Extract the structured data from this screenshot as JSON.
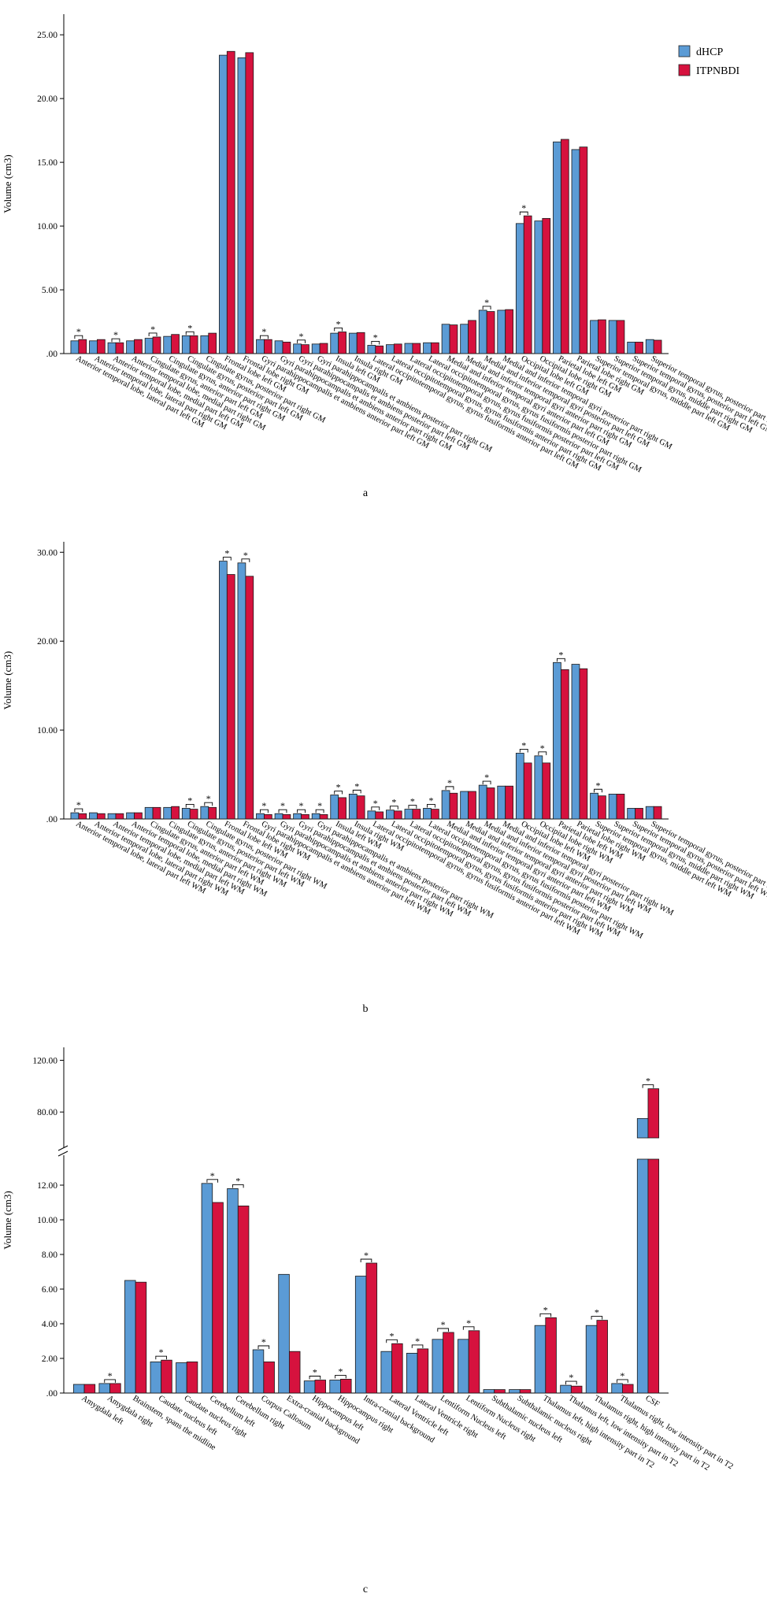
{
  "legend": {
    "series_a": "dHCP",
    "series_b": "ITPNBDI",
    "color_a": "#5b9bd5",
    "color_b": "#d6123e"
  },
  "chart_data": [
    {
      "id": "a",
      "type": "bar",
      "caption": "a",
      "ylabel": "Volume (cm3)",
      "ylim": [
        0,
        26
      ],
      "yticks": [
        "25.00",
        "20.00",
        "15.00",
        "10.00",
        "5.00",
        ".00"
      ],
      "ytick_values": [
        25,
        20,
        15,
        10,
        5,
        0
      ],
      "categories": [
        "Anterior temporal lobe, lateral part left GM",
        "Anterior temporal lobe, lateral part right GM",
        "Anterior temporal lobe, medial part left GM",
        "Anterior temporal lobe, medial part right GM",
        "Cingulate gyrus, anterior part left GM",
        "Cingulate gyrus, anterior part right GM",
        "Cingulate gyrus, posterior part left GM",
        "Cingulate gyrus, posterior part right GM",
        "Frontal lobe left GM",
        "Frontal lobe right GM",
        "Gyri parahippocampalis et ambiens anterior part left GM",
        "Gyri parahippocampalis et ambiens anterior part right GM",
        "Gyri parahippocampalis et ambiens posterior part left GM",
        "Gyri parahippocampalis et ambiens posterior part right GM",
        "Insula left GM",
        "Insula right GM",
        "Lateral occipitotemporal gyrus, gyrus fusiformis anterior part left GM",
        "Lateral occipitotemporal gyrus, gyrus fusiformis anterior part right GM",
        "Lateral occipitotemporal gyrus, gyrus fusiformis posterior part left GM",
        "Lateral occipitotemporal gyrus, gyrus fusiformis posterior part right GM",
        "Medial and inferior temporal gyri anterior part left GM",
        "Medial and inferior temporal gyri anterior part right GM",
        "Medial and inferior temporal gyri posterior part left GM",
        "Medial and inferior temporal gyri posterior part right GM",
        "Occipital lobe left GM",
        "Occipital lobe right GM",
        "Parietal lobe left GM",
        "Parietal lobe right GM",
        "Superior temporal gyrus, middle part left GM",
        "Superior temporal gyrus, middle part right GM",
        "Superior temporal gyrus, posterior part left GM",
        "Superior temporal gyrus, posterior part right GM"
      ],
      "series": [
        {
          "name": "dHCP",
          "values": [
            1.0,
            1.0,
            0.85,
            1.0,
            1.2,
            1.35,
            1.4,
            1.4,
            23.4,
            23.2,
            1.1,
            1.0,
            0.75,
            0.75,
            1.6,
            1.6,
            0.65,
            0.7,
            0.8,
            0.85,
            2.3,
            2.3,
            3.4,
            3.4,
            10.2,
            10.4,
            16.6,
            16.0,
            2.6,
            2.6,
            0.9,
            1.1
          ]
        },
        {
          "name": "ITPNBDI",
          "values": [
            1.1,
            1.1,
            0.85,
            1.1,
            1.3,
            1.5,
            1.4,
            1.6,
            23.7,
            23.6,
            1.1,
            0.9,
            0.7,
            0.8,
            1.7,
            1.65,
            0.6,
            0.75,
            0.8,
            0.85,
            2.25,
            2.6,
            3.3,
            3.45,
            10.8,
            10.6,
            16.8,
            16.2,
            2.65,
            2.6,
            0.9,
            1.05
          ]
        }
      ],
      "significant_pairs": [
        [
          0,
          1
        ],
        [
          2,
          3
        ],
        [
          4,
          5
        ],
        [
          6,
          7
        ],
        [
          10,
          11
        ],
        [
          12,
          13
        ],
        [
          14,
          15
        ],
        [
          16
        ],
        [
          22
        ],
        [
          24
        ]
      ],
      "significance_marker": "*"
    },
    {
      "id": "b",
      "type": "bar",
      "caption": "b",
      "ylabel": "Volume (cm3)",
      "ylim": [
        0,
        31
      ],
      "yticks": [
        "30.00",
        "20.00",
        "10.00",
        ".00"
      ],
      "ytick_values": [
        30,
        20,
        10,
        0
      ],
      "categories": [
        "Anterior temporal lobe, lateral part left WM",
        "Anterior temporal lobe, lateral part right WM",
        "Anterior temporal lobe, medial part left WM",
        "Anterior temporal lobe, medial part right WM",
        "Cingulate gyrus, anterior part left WM",
        "Cingulate gyrus, anterior part right WM",
        "Cingulate gyrus, posterior part left WM",
        "Cingulate gyrus, posterior part right WM",
        "Frontal lobe left WM",
        "Frontal lobe right WM",
        "Gyri parahippocampalis et ambiens anterior part left WM",
        "Gyri parahippocampalis et ambiens anterior part right WM",
        "Gyri parahippocampalis et ambiens posterior part left WM",
        "Gyri parahippocampalis et ambiens posterior part right WM",
        "Insula left WM",
        "Insula right WM",
        "Lateral occipitotemporal gyrus, gyrus fusiformis anterior part left WM",
        "Lateral occipitotemporal gyrus, gyrus fusiformis anterior part right WM",
        "Lateral occipitotemporal gyrus, gyrus fusiformis posterior part left WM",
        "Lateral occipitotemporal gyrus, gyrus fusiformis posterior part right WM",
        "Medial and inferior temporal gyri anterior part left WM",
        "Medial and inferior temporal gyri anterior part right WM",
        "Medial and inferior temporal gyri posterior part left WM",
        "Medial and inferior temporal gyri posterior part right WM",
        "Occipital lobe left WM",
        "Occipital lobe right WM",
        "Parietal lobe left WM",
        "Parietal lobe right WM",
        "Superior temporal gyrus, middle part left WM",
        "Superior temporal gyrus, middle part right WM",
        "Superior temporal gyrus, posterior part left WM",
        "Superior temporal gyrus, posterior part right WM"
      ],
      "series": [
        {
          "name": "dHCP",
          "values": [
            0.7,
            0.7,
            0.6,
            0.7,
            1.3,
            1.3,
            1.2,
            1.4,
            29.0,
            28.8,
            0.6,
            0.6,
            0.6,
            0.6,
            2.7,
            2.8,
            0.9,
            1.0,
            1.1,
            1.2,
            3.2,
            3.1,
            3.8,
            3.7,
            7.4,
            7.1,
            17.6,
            17.4,
            2.9,
            2.8,
            1.2,
            1.4
          ]
        },
        {
          "name": "ITPNBDI",
          "values": [
            0.6,
            0.6,
            0.6,
            0.7,
            1.3,
            1.4,
            1.1,
            1.3,
            27.5,
            27.3,
            0.5,
            0.5,
            0.5,
            0.5,
            2.4,
            2.6,
            0.8,
            0.9,
            1.1,
            1.1,
            2.9,
            3.1,
            3.5,
            3.7,
            6.3,
            6.3,
            16.8,
            16.9,
            2.6,
            2.8,
            1.2,
            1.4
          ]
        }
      ],
      "significant_pairs": [
        [
          0
        ],
        [
          6
        ],
        [
          7
        ],
        [
          8
        ],
        [
          9
        ],
        [
          10
        ],
        [
          11
        ],
        [
          12
        ],
        [
          13
        ],
        [
          14
        ],
        [
          15
        ],
        [
          16
        ],
        [
          17
        ],
        [
          18
        ],
        [
          19
        ],
        [
          20
        ],
        [
          22
        ],
        [
          24
        ],
        [
          25
        ],
        [
          26
        ],
        [
          28
        ]
      ],
      "significance_marker": "*"
    },
    {
      "id": "c",
      "type": "bar",
      "caption": "c",
      "ylabel": "Volume (cm3)",
      "ylim": [
        0,
        13.5
      ],
      "upper_ylim": [
        60,
        130
      ],
      "axis_break": true,
      "yticks": [
        "120.00",
        "80.00",
        "12.00",
        "10.00",
        "8.00",
        "6.00",
        "4.00",
        "2.00",
        ".00"
      ],
      "ytick_values": [
        120,
        80,
        12,
        10,
        8,
        6,
        4,
        2,
        0
      ],
      "categories": [
        "Amygdala left",
        "Amygdala right",
        "Brainstem, spans the midline",
        "Caudate nucleus left",
        "Caudate nucleus right",
        "Cerebellum left",
        "Cerebellum right",
        "Corpus Callosum",
        "Extra-cranial background",
        "Hippocampus left",
        "Hippocampus right",
        "Intra-cranial background",
        "Lateral Ventricle left",
        "Lateral Ventricle right",
        "Lentiform Nucleus left",
        "Lentiform Nucleus right",
        "Subthalamic nucleus left",
        "Subthalamic nucleus right",
        "Thalamus left, high intensity part in T2",
        "Thalamus left, low intensity part in T2",
        "Thalamus right, high intensity part in T2",
        "Thalamus right, low intensity part in T2",
        "CSF"
      ],
      "series": [
        {
          "name": "dHCP",
          "values": [
            0.5,
            0.55,
            6.5,
            1.8,
            1.75,
            12.1,
            11.8,
            2.5,
            6.85,
            0.7,
            0.75,
            6.75,
            2.4,
            2.3,
            3.1,
            3.1,
            0.2,
            0.2,
            3.9,
            0.45,
            3.9,
            0.55,
            75
          ]
        },
        {
          "name": "ITPNBDI",
          "values": [
            0.5,
            0.55,
            6.4,
            1.9,
            1.8,
            11.0,
            10.8,
            1.8,
            2.4,
            0.75,
            0.8,
            7.5,
            2.85,
            2.55,
            3.5,
            3.6,
            0.2,
            0.2,
            4.35,
            0.4,
            4.2,
            0.5,
            98
          ]
        }
      ],
      "significant_pairs": [
        [
          1
        ],
        [
          3
        ],
        [
          5
        ],
        [
          6
        ],
        [
          7
        ],
        [
          9
        ],
        [
          10
        ],
        [
          11
        ],
        [
          12
        ],
        [
          13
        ],
        [
          14
        ],
        [
          15
        ],
        [
          18
        ],
        [
          19
        ],
        [
          20
        ],
        [
          21
        ],
        [
          22
        ]
      ],
      "significance_marker": "*"
    }
  ]
}
